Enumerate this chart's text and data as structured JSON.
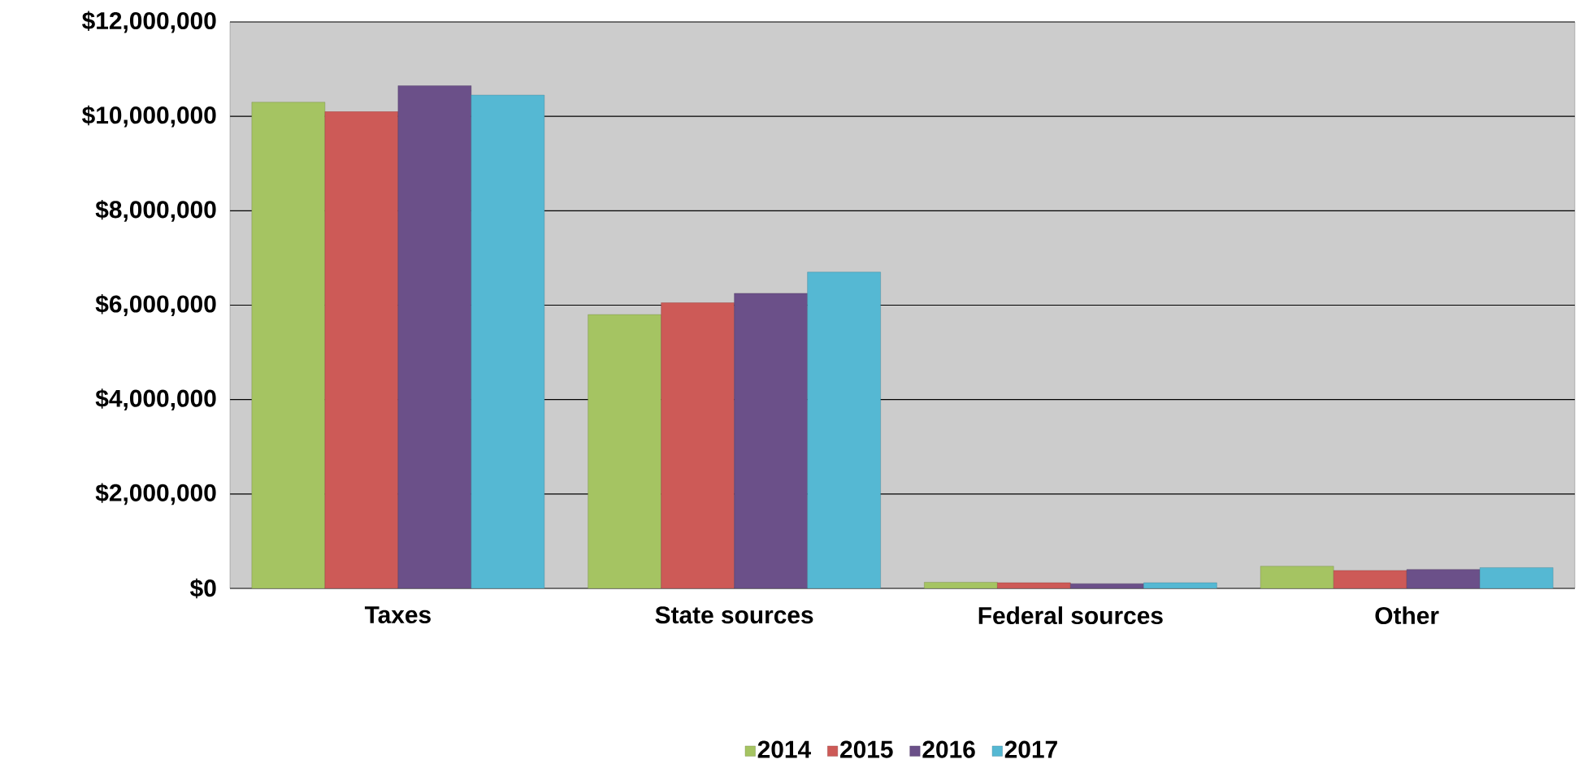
{
  "chart_data": {
    "type": "bar",
    "categories": [
      "Taxes",
      "State sources",
      "Federal sources",
      "Other"
    ],
    "series": [
      {
        "name": "2014",
        "color": "#a5c462",
        "values": [
          10300000,
          5800000,
          130000,
          470000
        ]
      },
      {
        "name": "2015",
        "color": "#cd5a57",
        "values": [
          10100000,
          6050000,
          120000,
          380000
        ]
      },
      {
        "name": "2016",
        "color": "#6b5089",
        "values": [
          10650000,
          6250000,
          100000,
          400000
        ]
      },
      {
        "name": "2017",
        "color": "#55b8d3",
        "values": [
          10450000,
          6700000,
          120000,
          440000
        ]
      }
    ],
    "ylim": [
      0,
      12000000
    ],
    "yticks": [
      {
        "value": 0,
        "label": "$0"
      },
      {
        "value": 2000000,
        "label": "$2,000,000"
      },
      {
        "value": 4000000,
        "label": "$4,000,000"
      },
      {
        "value": 6000000,
        "label": "$6,000,000"
      },
      {
        "value": 8000000,
        "label": "$8,000,000"
      },
      {
        "value": 10000000,
        "label": "$10,000,000"
      },
      {
        "value": 12000000,
        "label": "$12,000,000"
      }
    ],
    "grid": "y",
    "legend": "bottom"
  }
}
